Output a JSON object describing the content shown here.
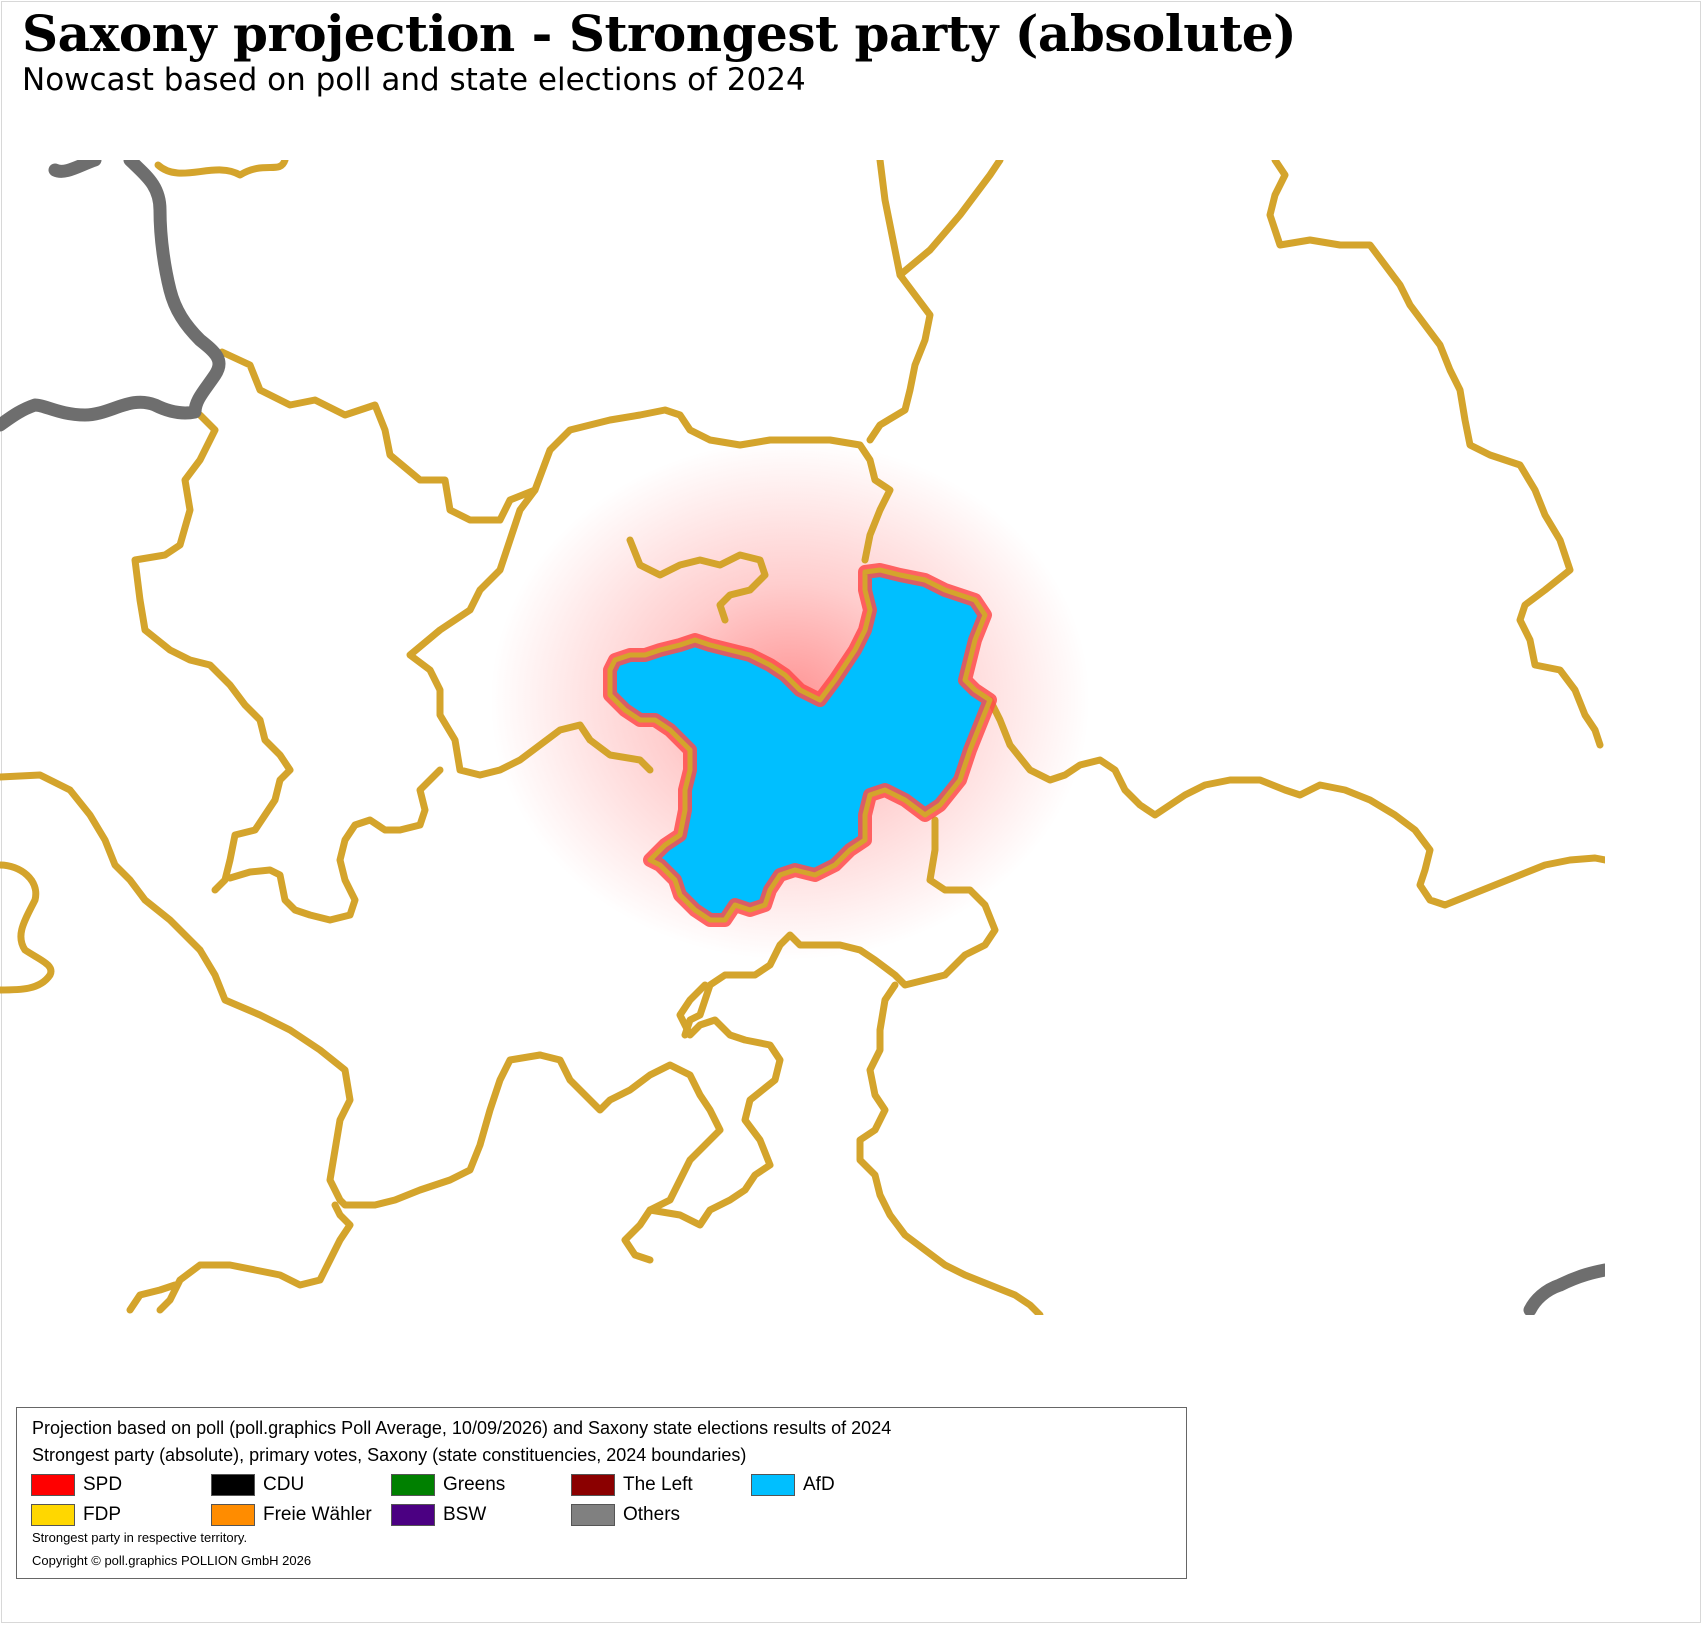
{
  "title": "Saxony projection - Strongest party (absolute)",
  "subtitle": "Nowcast based on poll and state elections of 2024",
  "map": {
    "boundary_color": "#D4A42C",
    "state_border_color": "#6E6E6E",
    "highlighted_constituency": {
      "strongest_party": "AfD",
      "fill": "#00BFFF",
      "glow": "#FF3B3B"
    }
  },
  "legend": {
    "line1": "Projection based on poll (poll.graphics Poll Average, 10/09/2026) and Saxony state elections results of 2024",
    "line2": "Strongest party (absolute), primary votes, Saxony (state constituencies, 2024 boundaries)",
    "parties": [
      {
        "name": "SPD",
        "color": "#FF0000"
      },
      {
        "name": "CDU",
        "color": "#000000"
      },
      {
        "name": "Greens",
        "color": "#008000"
      },
      {
        "name": "The Left",
        "color": "#8B0000"
      },
      {
        "name": "AfD",
        "color": "#00BFFF"
      },
      {
        "name": "FDP",
        "color": "#FFD700"
      },
      {
        "name": "Freie Wähler",
        "color": "#FF8C00"
      },
      {
        "name": "BSW",
        "color": "#4B0082"
      },
      {
        "name": "Others",
        "color": "#808080"
      }
    ],
    "note": "Strongest party in respective territory.",
    "copyright": "Copyright © poll.graphics POLLION GmbH 2026"
  }
}
